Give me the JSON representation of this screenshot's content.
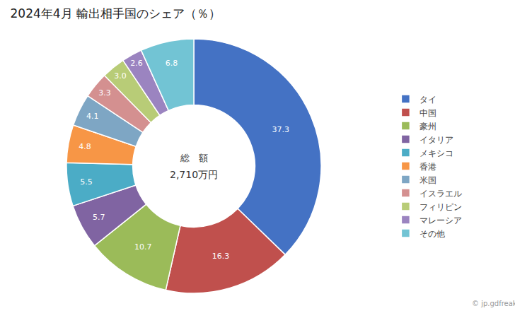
{
  "chart_data": {
    "type": "donut",
    "title": "2024年4月 輸出相手国のシェア（％）",
    "categories": [
      "タイ",
      "中国",
      "豪州",
      "イタリア",
      "メキシコ",
      "香港",
      "米国",
      "イスラエル",
      "フィリピン",
      "マレーシア",
      "その他"
    ],
    "values": [
      37.3,
      16.3,
      10.7,
      5.7,
      5.5,
      4.8,
      4.1,
      3.3,
      3.0,
      2.6,
      6.8
    ],
    "value_labels": [
      "37.3",
      "16.3",
      "10.7",
      "5.7",
      "5.5",
      "4.8",
      "4.1",
      "3.3",
      "3.0",
      "2.6",
      "6.8"
    ],
    "colors": [
      "#4472C4",
      "#C0504D",
      "#9BBB59",
      "#8064A2",
      "#4BACC6",
      "#F79646",
      "#7EA6C4",
      "#D49090",
      "#B8CC77",
      "#9B84C0",
      "#72C4D4"
    ],
    "data_labels": true,
    "legend": "right",
    "annotations": [
      "総　額",
      "2,710万円",
      "© jp.gdfreak.com"
    ]
  }
}
